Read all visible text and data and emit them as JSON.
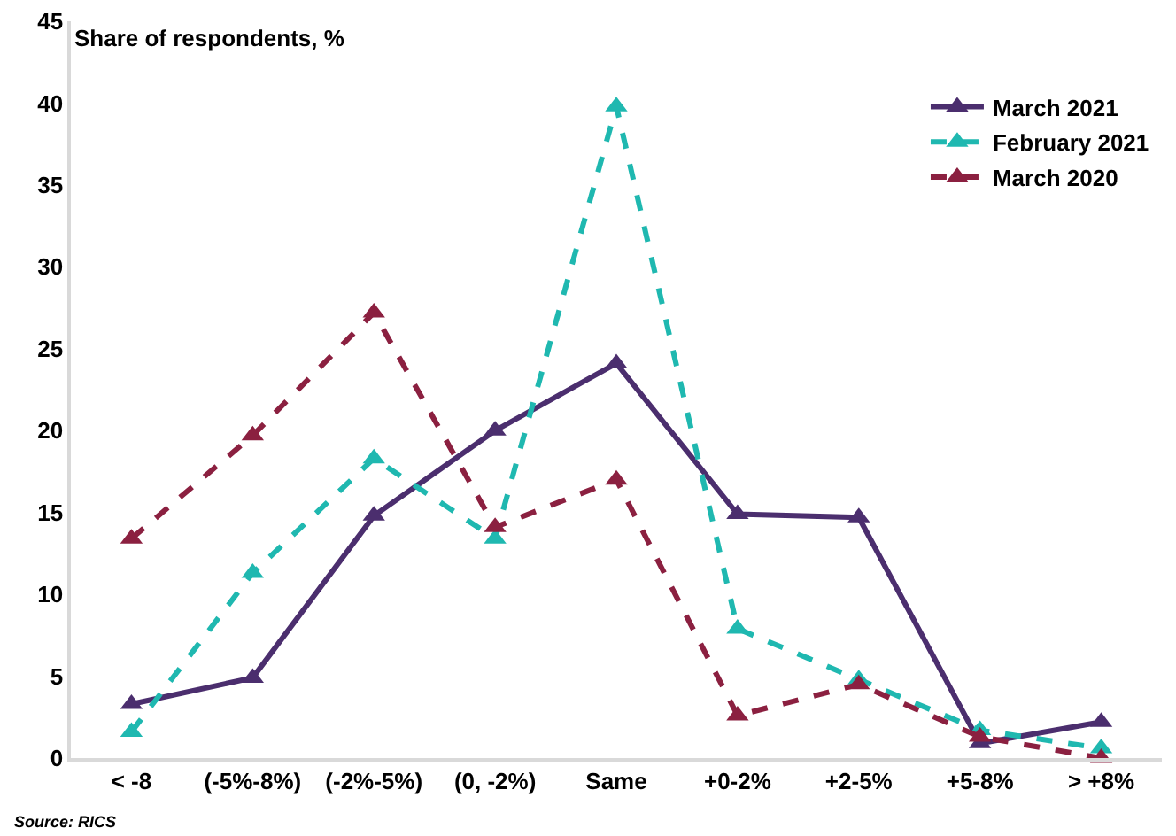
{
  "chart_data": {
    "type": "line",
    "ylabel": "Share of respondents, %",
    "categories": [
      "< -8",
      "(-5%-8%)",
      "(-2%-5%)",
      "(0, -2%)",
      "Same",
      "+0-2%",
      "+2-5%",
      "+5-8%",
      "> +8%"
    ],
    "series": [
      {
        "name": "March 2021",
        "color": "#4b2e6e",
        "line_style": "solid",
        "values": [
          3.3,
          4.9,
          14.8,
          20,
          24.1,
          14.9,
          14.7,
          0.9,
          2.2
        ]
      },
      {
        "name": "February 2021",
        "color": "#1fb8b0",
        "line_style": "dashed",
        "values": [
          1.6,
          11.3,
          18.3,
          13.4,
          39.8,
          7.9,
          4.8,
          1.7,
          0.6
        ]
      },
      {
        "name": "March 2020",
        "color": "#8b2040",
        "line_style": "dashed",
        "values": [
          13.4,
          19.7,
          27.2,
          14.1,
          17,
          2.6,
          4.5,
          1.3,
          0
        ]
      }
    ],
    "ylim": [
      0,
      45
    ],
    "yticks": [
      0,
      5,
      10,
      15,
      20,
      25,
      30,
      35,
      40,
      45
    ],
    "grid": false,
    "legend": "top right",
    "marker": "triangle",
    "annotations": [
      "Source: RICS"
    ]
  }
}
